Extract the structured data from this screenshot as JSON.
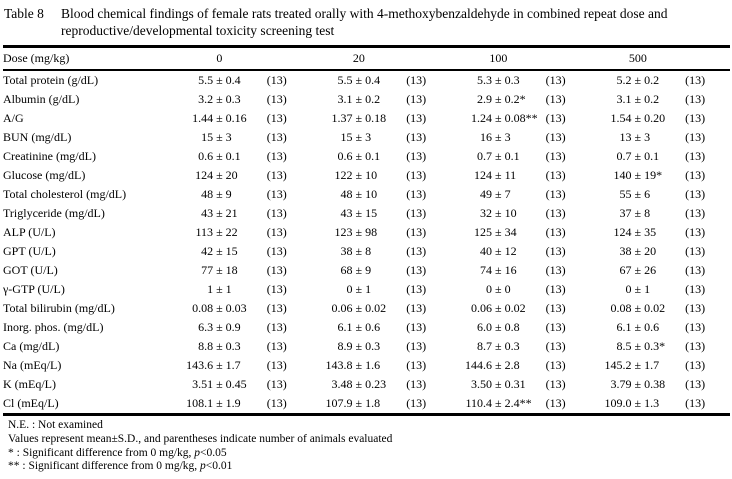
{
  "caption": {
    "label": "Table 8",
    "text": "Blood chemical findings of female rats treated orally with 4-methoxybenzaldehyde in combined repeat dose and reproductive/developmental toxicity screening test"
  },
  "table": {
    "header": {
      "label": "Dose (mg/kg)",
      "doses": [
        "0",
        "20",
        "100",
        "500"
      ]
    },
    "rows": [
      {
        "label": "Total protein (g/dL)",
        "cells": [
          {
            "mean": "5.5",
            "sd": "0.4",
            "flag": "",
            "n": "(13)"
          },
          {
            "mean": "5.5",
            "sd": "0.4",
            "flag": "",
            "n": "(13)"
          },
          {
            "mean": "5.3",
            "sd": "0.3",
            "flag": "",
            "n": "(13)"
          },
          {
            "mean": "5.2",
            "sd": "0.2",
            "flag": "",
            "n": "(13)"
          }
        ]
      },
      {
        "label": "Albumin (g/dL)",
        "cells": [
          {
            "mean": "3.2",
            "sd": "0.3",
            "flag": "",
            "n": "(13)"
          },
          {
            "mean": "3.1",
            "sd": "0.2",
            "flag": "",
            "n": "(13)"
          },
          {
            "mean": "2.9",
            "sd": "0.2",
            "flag": "*",
            "n": "(13)"
          },
          {
            "mean": "3.1",
            "sd": "0.2",
            "flag": "",
            "n": "(13)"
          }
        ]
      },
      {
        "label": "A/G",
        "cells": [
          {
            "mean": "1.44",
            "sd": "0.16",
            "flag": "",
            "n": "(13)"
          },
          {
            "mean": "1.37",
            "sd": "0.18",
            "flag": "",
            "n": "(13)"
          },
          {
            "mean": "1.24",
            "sd": "0.08",
            "flag": "**",
            "n": "(13)"
          },
          {
            "mean": "1.54",
            "sd": "0.20",
            "flag": "",
            "n": "(13)"
          }
        ]
      },
      {
        "label": "BUN (mg/dL)",
        "cells": [
          {
            "mean": "15",
            "sd": "3",
            "flag": "",
            "n": "(13)"
          },
          {
            "mean": "15",
            "sd": "3",
            "flag": "",
            "n": "(13)"
          },
          {
            "mean": "16",
            "sd": "3",
            "flag": "",
            "n": "(13)"
          },
          {
            "mean": "13",
            "sd": "3",
            "flag": "",
            "n": "(13)"
          }
        ]
      },
      {
        "label": "Creatinine (mg/dL)",
        "cells": [
          {
            "mean": "0.6",
            "sd": "0.1",
            "flag": "",
            "n": "(13)"
          },
          {
            "mean": "0.6",
            "sd": "0.1",
            "flag": "",
            "n": "(13)"
          },
          {
            "mean": "0.7",
            "sd": "0.1",
            "flag": "",
            "n": "(13)"
          },
          {
            "mean": "0.7",
            "sd": "0.1",
            "flag": "",
            "n": "(13)"
          }
        ]
      },
      {
        "label": "Glucose (mg/dL)",
        "cells": [
          {
            "mean": "124",
            "sd": "20",
            "flag": "",
            "n": "(13)"
          },
          {
            "mean": "122",
            "sd": "10",
            "flag": "",
            "n": "(13)"
          },
          {
            "mean": "124",
            "sd": "11",
            "flag": "",
            "n": "(13)"
          },
          {
            "mean": "140",
            "sd": "19",
            "flag": "*",
            "n": "(13)"
          }
        ]
      },
      {
        "label": "Total cholesterol (mg/dL)",
        "cells": [
          {
            "mean": "48",
            "sd": "9",
            "flag": "",
            "n": "(13)"
          },
          {
            "mean": "48",
            "sd": "10",
            "flag": "",
            "n": "(13)"
          },
          {
            "mean": "49",
            "sd": "7",
            "flag": "",
            "n": "(13)"
          },
          {
            "mean": "55",
            "sd": "6",
            "flag": "",
            "n": "(13)"
          }
        ]
      },
      {
        "label": "Triglyceride (mg/dL)",
        "cells": [
          {
            "mean": "43",
            "sd": "21",
            "flag": "",
            "n": "(13)"
          },
          {
            "mean": "43",
            "sd": "15",
            "flag": "",
            "n": "(13)"
          },
          {
            "mean": "32",
            "sd": "10",
            "flag": "",
            "n": "(13)"
          },
          {
            "mean": "37",
            "sd": "8",
            "flag": "",
            "n": "(13)"
          }
        ]
      },
      {
        "label": "ALP (U/L)",
        "cells": [
          {
            "mean": "113",
            "sd": "22",
            "flag": "",
            "n": "(13)"
          },
          {
            "mean": "123",
            "sd": "98",
            "flag": "",
            "n": "(13)"
          },
          {
            "mean": "125",
            "sd": "34",
            "flag": "",
            "n": "(13)"
          },
          {
            "mean": "124",
            "sd": "35",
            "flag": "",
            "n": "(13)"
          }
        ]
      },
      {
        "label": "GPT (U/L)",
        "cells": [
          {
            "mean": "42",
            "sd": "15",
            "flag": "",
            "n": "(13)"
          },
          {
            "mean": "38",
            "sd": "8",
            "flag": "",
            "n": "(13)"
          },
          {
            "mean": "40",
            "sd": "12",
            "flag": "",
            "n": "(13)"
          },
          {
            "mean": "38",
            "sd": "20",
            "flag": "",
            "n": "(13)"
          }
        ]
      },
      {
        "label": "GOT (U/L)",
        "cells": [
          {
            "mean": "77",
            "sd": "18",
            "flag": "",
            "n": "(13)"
          },
          {
            "mean": "68",
            "sd": "9",
            "flag": "",
            "n": "(13)"
          },
          {
            "mean": "74",
            "sd": "16",
            "flag": "",
            "n": "(13)"
          },
          {
            "mean": "67",
            "sd": "26",
            "flag": "",
            "n": "(13)"
          }
        ]
      },
      {
        "label": "γ-GTP (U/L)",
        "cells": [
          {
            "mean": "1",
            "sd": "1",
            "flag": "",
            "n": "(13)"
          },
          {
            "mean": "0",
            "sd": "1",
            "flag": "",
            "n": "(13)"
          },
          {
            "mean": "0",
            "sd": "0",
            "flag": "",
            "n": "(13)"
          },
          {
            "mean": "0",
            "sd": "1",
            "flag": "",
            "n": "(13)"
          }
        ]
      },
      {
        "label": "Total bilirubin (mg/dL)",
        "cells": [
          {
            "mean": "0.08",
            "sd": "0.03",
            "flag": "",
            "n": "(13)"
          },
          {
            "mean": "0.06",
            "sd": "0.02",
            "flag": "",
            "n": "(13)"
          },
          {
            "mean": "0.06",
            "sd": "0.02",
            "flag": "",
            "n": "(13)"
          },
          {
            "mean": "0.08",
            "sd": "0.02",
            "flag": "",
            "n": "(13)"
          }
        ]
      },
      {
        "label": "Inorg. phos. (mg/dL)",
        "cells": [
          {
            "mean": "6.3",
            "sd": "0.9",
            "flag": "",
            "n": "(13)"
          },
          {
            "mean": "6.1",
            "sd": "0.6",
            "flag": "",
            "n": "(13)"
          },
          {
            "mean": "6.0",
            "sd": "0.8",
            "flag": "",
            "n": "(13)"
          },
          {
            "mean": "6.1",
            "sd": "0.6",
            "flag": "",
            "n": "(13)"
          }
        ]
      },
      {
        "label": "Ca (mg/dL)",
        "cells": [
          {
            "mean": "8.8",
            "sd": "0.3",
            "flag": "",
            "n": "(13)"
          },
          {
            "mean": "8.9",
            "sd": "0.3",
            "flag": "",
            "n": "(13)"
          },
          {
            "mean": "8.7",
            "sd": "0.3",
            "flag": "",
            "n": "(13)"
          },
          {
            "mean": "8.5",
            "sd": "0.3",
            "flag": "*",
            "n": "(13)"
          }
        ]
      },
      {
        "label": "Na (mEq/L)",
        "cells": [
          {
            "mean": "143.6",
            "sd": "1.7",
            "flag": "",
            "n": "(13)"
          },
          {
            "mean": "143.8",
            "sd": "1.6",
            "flag": "",
            "n": "(13)"
          },
          {
            "mean": "144.6",
            "sd": "2.8",
            "flag": "",
            "n": "(13)"
          },
          {
            "mean": "145.2",
            "sd": "1.7",
            "flag": "",
            "n": "(13)"
          }
        ]
      },
      {
        "label": "K (mEq/L)",
        "cells": [
          {
            "mean": "3.51",
            "sd": "0.45",
            "flag": "",
            "n": "(13)"
          },
          {
            "mean": "3.48",
            "sd": "0.23",
            "flag": "",
            "n": "(13)"
          },
          {
            "mean": "3.50",
            "sd": "0.31",
            "flag": "",
            "n": "(13)"
          },
          {
            "mean": "3.79",
            "sd": "0.38",
            "flag": "",
            "n": "(13)"
          }
        ]
      },
      {
        "label": "Cl (mEq/L)",
        "cells": [
          {
            "mean": "108.1",
            "sd": "1.9",
            "flag": "",
            "n": "(13)"
          },
          {
            "mean": "107.9",
            "sd": "1.8",
            "flag": "",
            "n": "(13)"
          },
          {
            "mean": "110.4",
            "sd": "2.4",
            "flag": "**",
            "n": "(13)"
          },
          {
            "mean": "109.0",
            "sd": "1.3",
            "flag": "",
            "n": "(13)"
          }
        ]
      }
    ]
  },
  "footnotes": [
    {
      "pre": "N.E. : Not examined",
      "p": "",
      "post": ""
    },
    {
      "pre": "Values represent mean±S.D., and parentheses indicate number of animals evaluated",
      "p": "",
      "post": ""
    },
    {
      "pre": "* : Significant difference from 0 mg/kg, ",
      "p": "p",
      "post": "<0.05"
    },
    {
      "pre": "** : Significant difference from 0 mg/kg, ",
      "p": "p",
      "post": "<0.01"
    }
  ]
}
